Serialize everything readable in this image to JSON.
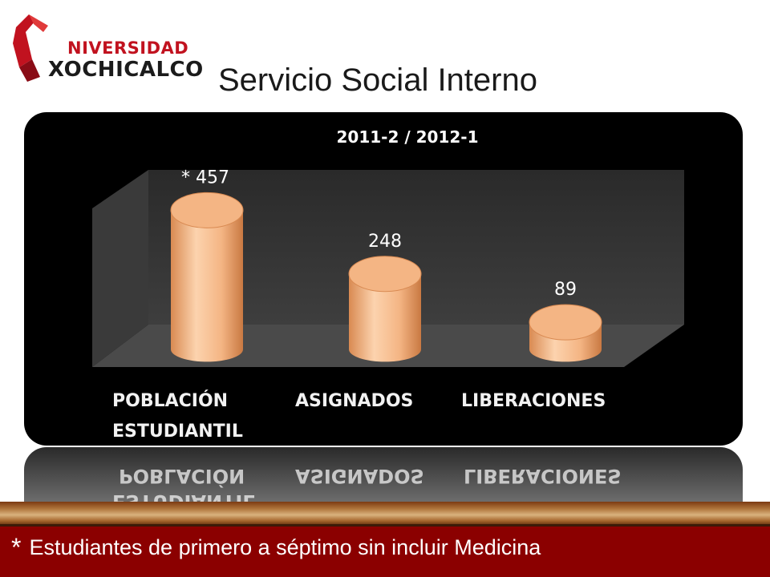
{
  "logo": {
    "line1": "NIVERSIDAD",
    "line2": "XOCHICALCO"
  },
  "title": "Servicio Social Interno",
  "chart_data": {
    "type": "bar",
    "title": "2011-2 / 2012-1",
    "categories": [
      "POBLACIÓN ESTUDIANTIL",
      "ASIGNADOS",
      "LIBERACIONES"
    ],
    "category_lines": [
      [
        "POBLACIÓN",
        "ESTUDIANTIL"
      ],
      [
        "ASIGNADOS"
      ],
      [
        "LIBERACIONES"
      ]
    ],
    "values": [
      457,
      248,
      89
    ],
    "data_labels": [
      "* 457",
      "248",
      "89"
    ],
    "bar_shape": "3d-cylinder",
    "ylim": [
      0,
      500
    ],
    "grid": false,
    "xlabel": "",
    "ylabel": ""
  },
  "footnote": {
    "marker": "*",
    "text": "Estudiantes de primero a séptimo sin incluir Medicina"
  },
  "colors": {
    "bar": "#f4b584",
    "bar_dark": "#d98a52",
    "panel": "#000000",
    "plot_floor": "#3d3d3d",
    "footer": "#8b0000"
  }
}
